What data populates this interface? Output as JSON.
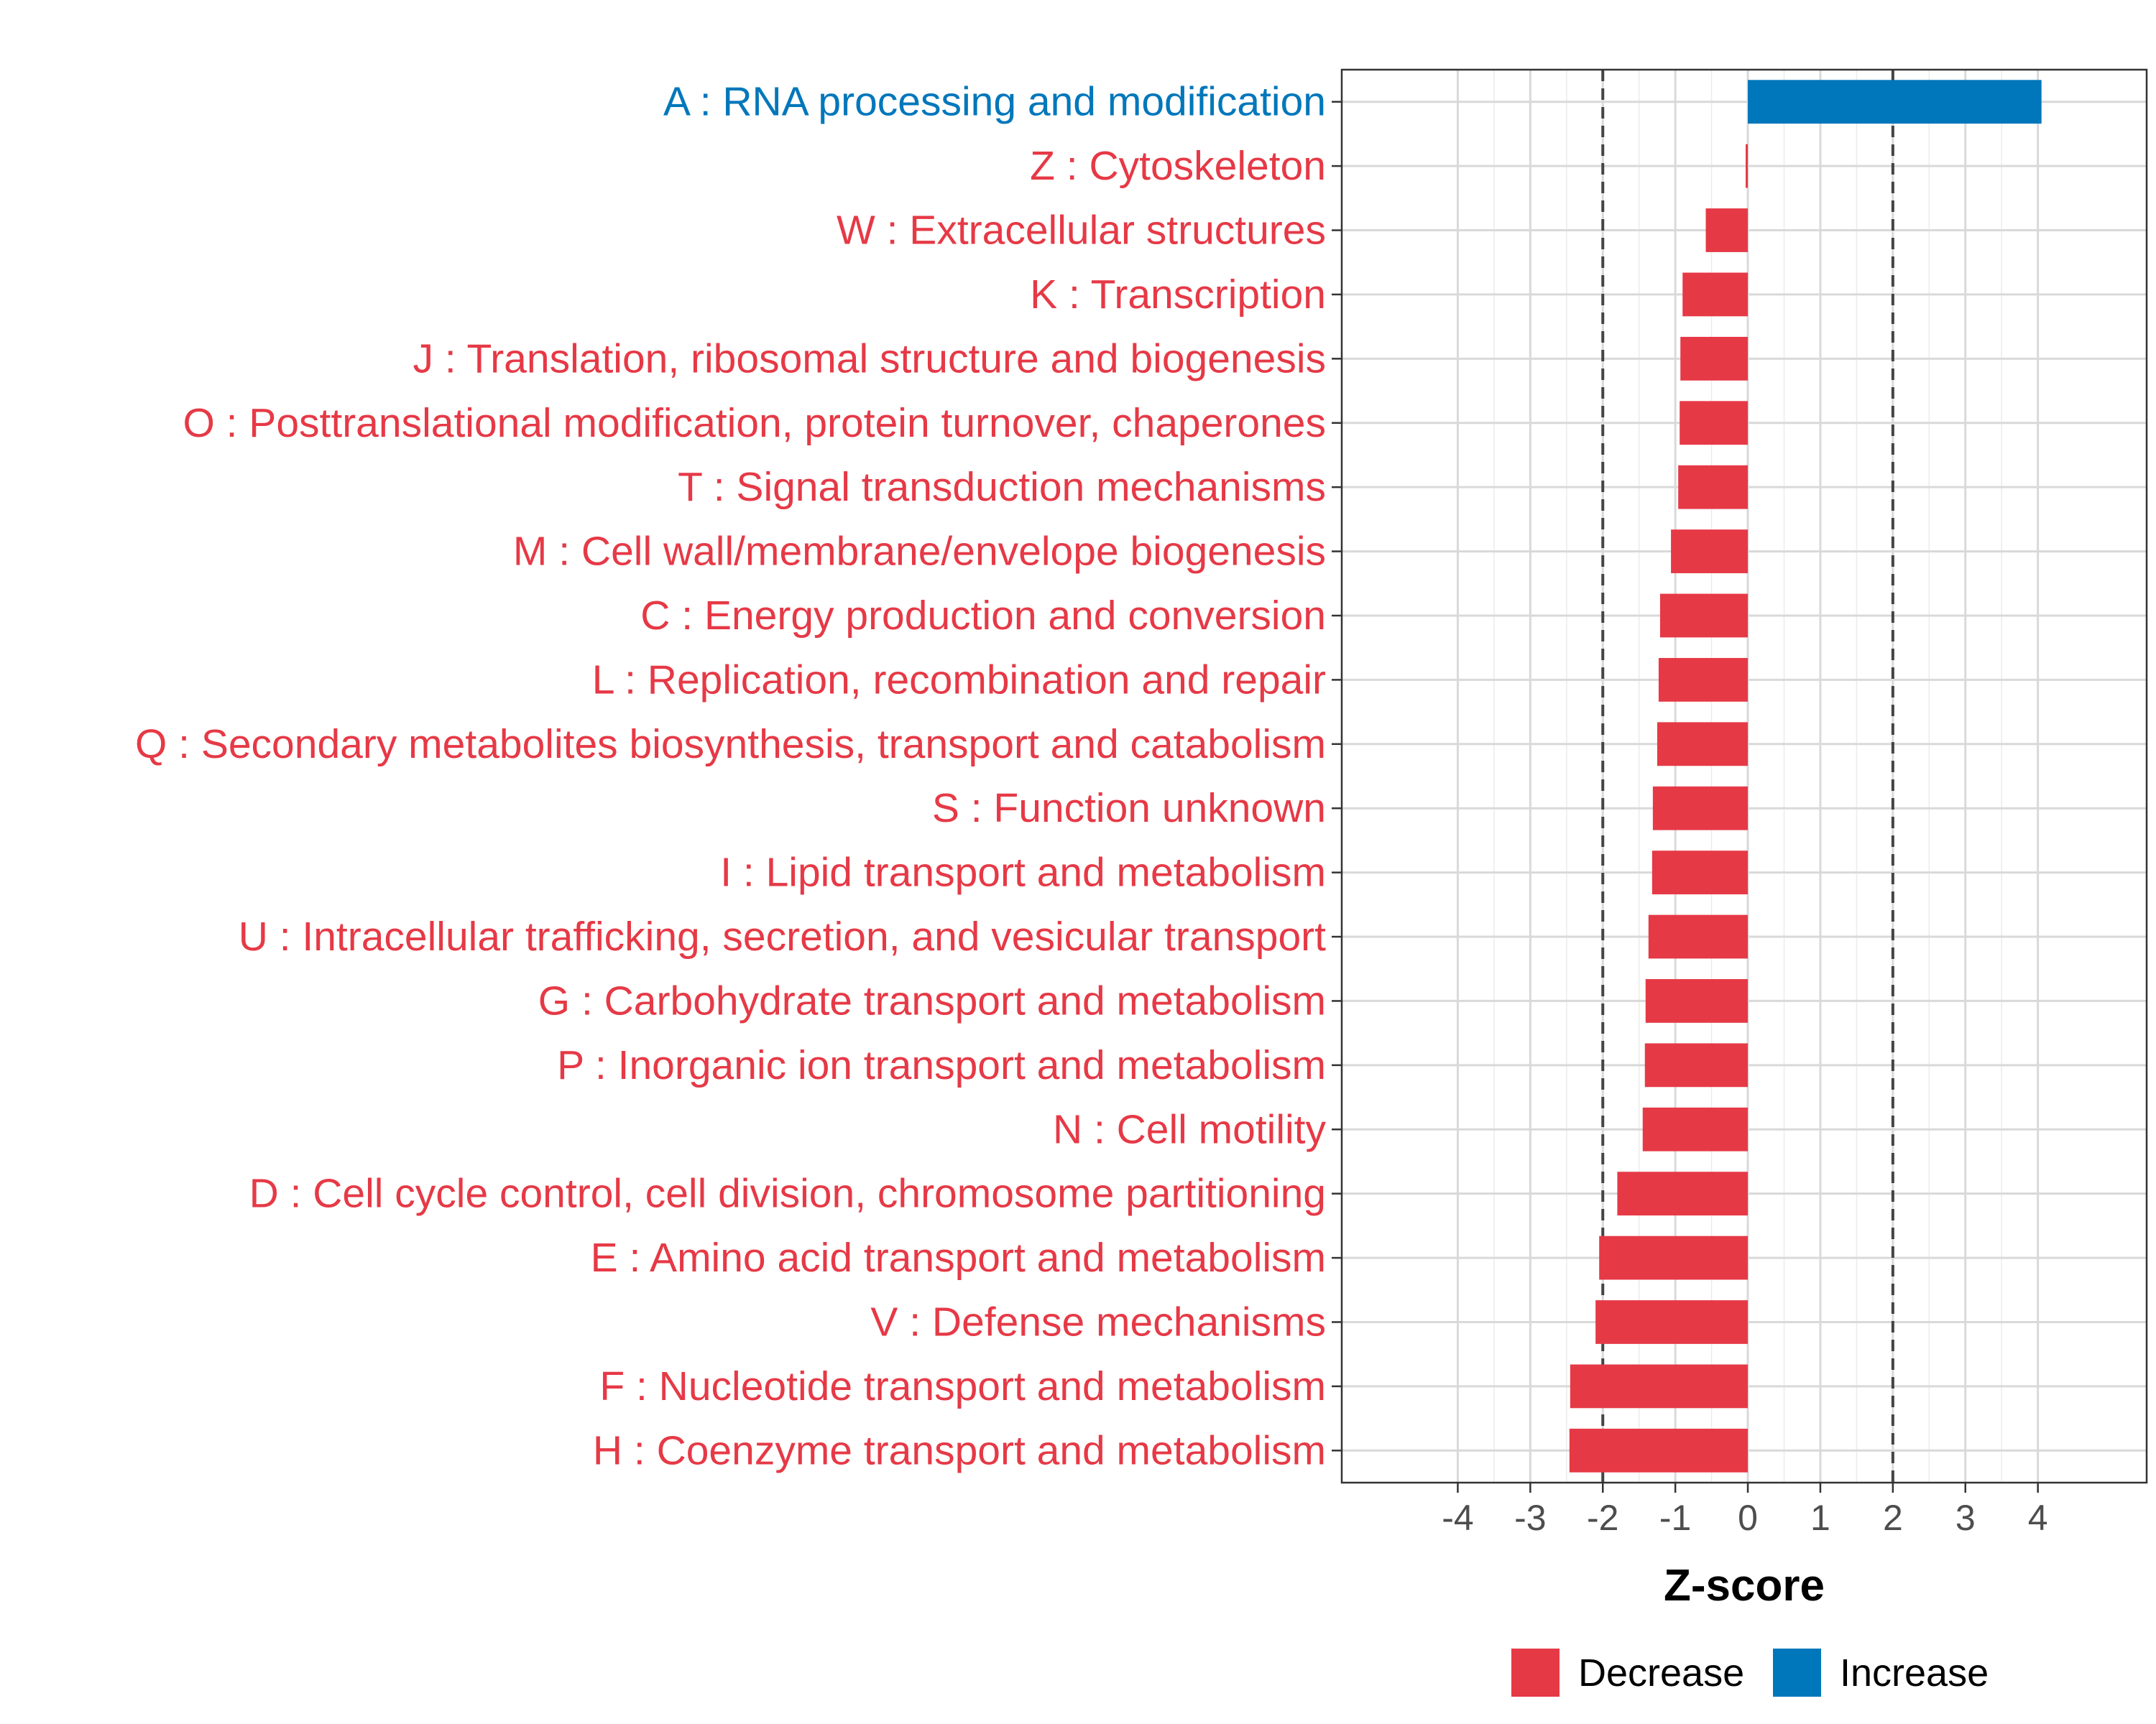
{
  "chart_data": {
    "type": "bar",
    "orientation": "horizontal",
    "title": "",
    "xlabel": "Z-score",
    "ylabel": "",
    "xlim": [
      -5.6,
      5.5
    ],
    "xticks": [
      -4,
      -3,
      -2,
      -1,
      0,
      1,
      2,
      3,
      4
    ],
    "xtick_labels": [
      "-4",
      "-3",
      "-2",
      "-1",
      "0",
      "1",
      "2",
      "3",
      "4"
    ],
    "reference_lines": [
      -2,
      2
    ],
    "grid": true,
    "legend_position": "bottom",
    "colors": {
      "Decrease": "#e63946",
      "Increase": "#0077bb"
    },
    "legend": [
      {
        "label": "Decrease",
        "color": "#e63946"
      },
      {
        "label": "Increase",
        "color": "#0077bb"
      }
    ],
    "bars": [
      {
        "label": "A : RNA processing and modification",
        "value": 4.05,
        "group": "Increase"
      },
      {
        "label": "Z : Cytoskeleton",
        "value": -0.03,
        "group": "Decrease"
      },
      {
        "label": "W : Extracellular structures",
        "value": -0.58,
        "group": "Decrease"
      },
      {
        "label": "K : Transcription",
        "value": -0.9,
        "group": "Decrease"
      },
      {
        "label": "J : Translation, ribosomal structure and biogenesis",
        "value": -0.93,
        "group": "Decrease"
      },
      {
        "label": "O : Posttranslational modification, protein turnover, chaperones",
        "value": -0.94,
        "group": "Decrease"
      },
      {
        "label": "T : Signal transduction mechanisms",
        "value": -0.96,
        "group": "Decrease"
      },
      {
        "label": "M : Cell wall/membrane/envelope biogenesis",
        "value": -1.06,
        "group": "Decrease"
      },
      {
        "label": "C : Energy production and conversion",
        "value": -1.21,
        "group": "Decrease"
      },
      {
        "label": "L : Replication, recombination and repair",
        "value": -1.23,
        "group": "Decrease"
      },
      {
        "label": "Q : Secondary metabolites biosynthesis, transport and catabolism",
        "value": -1.25,
        "group": "Decrease"
      },
      {
        "label": "S : Function unknown",
        "value": -1.31,
        "group": "Decrease"
      },
      {
        "label": "I : Lipid transport and metabolism",
        "value": -1.32,
        "group": "Decrease"
      },
      {
        "label": "U : Intracellular trafficking, secretion, and vesicular transport",
        "value": -1.37,
        "group": "Decrease"
      },
      {
        "label": "G : Carbohydrate transport and metabolism",
        "value": -1.41,
        "group": "Decrease"
      },
      {
        "label": "P : Inorganic ion transport and metabolism",
        "value": -1.42,
        "group": "Decrease"
      },
      {
        "label": "N : Cell motility",
        "value": -1.45,
        "group": "Decrease"
      },
      {
        "label": "D : Cell cycle control, cell division, chromosome partitioning",
        "value": -1.8,
        "group": "Decrease"
      },
      {
        "label": "E : Amino acid transport and metabolism",
        "value": -2.05,
        "group": "Decrease"
      },
      {
        "label": "V : Defense mechanisms",
        "value": -2.1,
        "group": "Decrease"
      },
      {
        "label": "F : Nucleotide transport and metabolism",
        "value": -2.45,
        "group": "Decrease"
      },
      {
        "label": "H : Coenzyme transport and metabolism",
        "value": -2.46,
        "group": "Decrease"
      }
    ]
  }
}
